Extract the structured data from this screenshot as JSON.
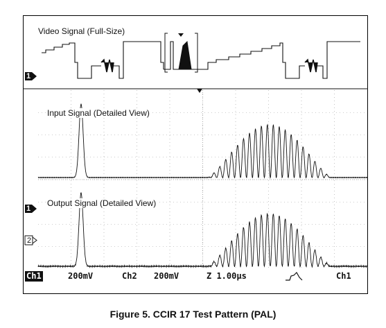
{
  "window": {
    "top_label": "Video Signal (Full-Size)",
    "middle_label": "Input Signal (Detailed View)",
    "bottom_label": "Output Signal (Detailed View)",
    "markers": {
      "ch1": "1",
      "ch2": "2"
    }
  },
  "status": {
    "channel1": "Ch1",
    "channel1_scale": "200mV",
    "channel2": "Ch2",
    "channel2_scale": "200mV",
    "timebase": "Z 1.00μs",
    "trigger_icon": "trigger-edge-icon",
    "trigger_source": "Ch1"
  },
  "caption": "Figure 5. CCIR 17 Test Pattern (PAL)",
  "colors": {
    "trace": "#111111",
    "grid": "#9a9a9a",
    "frame": "#000000"
  }
}
